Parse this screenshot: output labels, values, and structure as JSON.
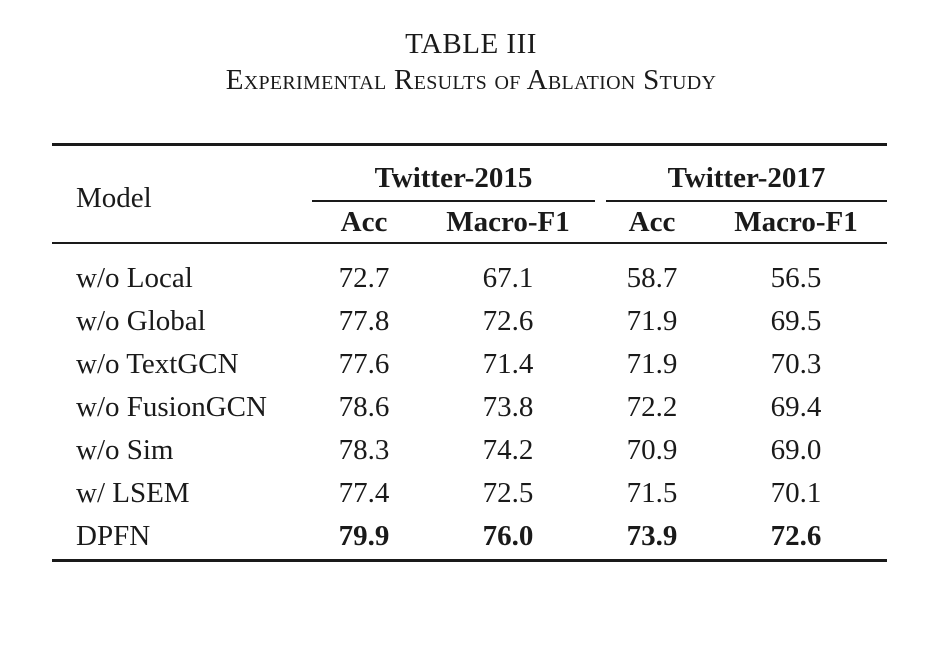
{
  "caption": {
    "number": "TABLE III",
    "title": "Experimental Results of Ablation Study"
  },
  "table": {
    "model_header": "Model",
    "groups": [
      {
        "name": "Twitter-2015",
        "metrics": [
          "Acc",
          "Macro-F1"
        ]
      },
      {
        "name": "Twitter-2017",
        "metrics": [
          "Acc",
          "Macro-F1"
        ]
      }
    ],
    "rows": [
      {
        "model": "w/o Local",
        "values": [
          "72.7",
          "67.1",
          "58.7",
          "56.5"
        ],
        "bold": false
      },
      {
        "model": "w/o Global",
        "values": [
          "77.8",
          "72.6",
          "71.9",
          "69.5"
        ],
        "bold": false
      },
      {
        "model": "w/o TextGCN",
        "values": [
          "77.6",
          "71.4",
          "71.9",
          "70.3"
        ],
        "bold": false
      },
      {
        "model": "w/o FusionGCN",
        "values": [
          "78.6",
          "73.8",
          "72.2",
          "69.4"
        ],
        "bold": false
      },
      {
        "model": "w/o Sim",
        "values": [
          "78.3",
          "74.2",
          "70.9",
          "69.0"
        ],
        "bold": false
      },
      {
        "model": "w/ LSEM",
        "values": [
          "77.4",
          "72.5",
          "71.5",
          "70.1"
        ],
        "bold": false
      },
      {
        "model": "DPFN",
        "values": [
          "79.9",
          "76.0",
          "73.9",
          "72.6"
        ],
        "bold": true
      }
    ]
  }
}
